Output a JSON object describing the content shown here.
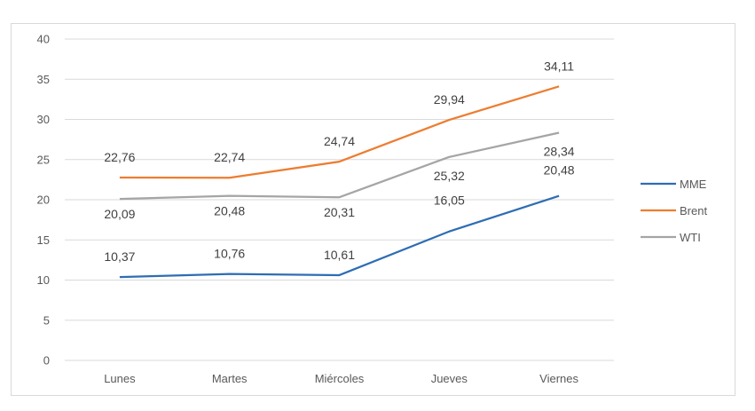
{
  "chart_data": {
    "type": "line",
    "categories": [
      "Lunes",
      "Martes",
      "Miércoles",
      "Jueves",
      "Viernes"
    ],
    "ylim": [
      0,
      40
    ],
    "yticks": [
      "0",
      "5",
      "10",
      "15",
      "20",
      "25",
      "30",
      "35",
      "40"
    ],
    "grid": true,
    "legend_position": "right",
    "series": [
      {
        "name": "MME",
        "color": "#2e6db4",
        "values": [
          10.37,
          10.76,
          10.61,
          16.05,
          20.48
        ],
        "labels": [
          "10,37",
          "10,76",
          "10,61",
          "16,05",
          "20,48"
        ]
      },
      {
        "name": "Brent",
        "color": "#ed7d31",
        "values": [
          22.76,
          22.74,
          24.74,
          29.94,
          34.11
        ],
        "labels": [
          "22,76",
          "22,74",
          "24,74",
          "29,94",
          "34,11"
        ]
      },
      {
        "name": "WTI",
        "color": "#a5a5a5",
        "values": [
          20.09,
          20.48,
          20.31,
          25.32,
          28.34
        ],
        "labels": [
          "20,09",
          "20,48",
          "20,31",
          "25,32",
          "28,34"
        ]
      }
    ]
  }
}
